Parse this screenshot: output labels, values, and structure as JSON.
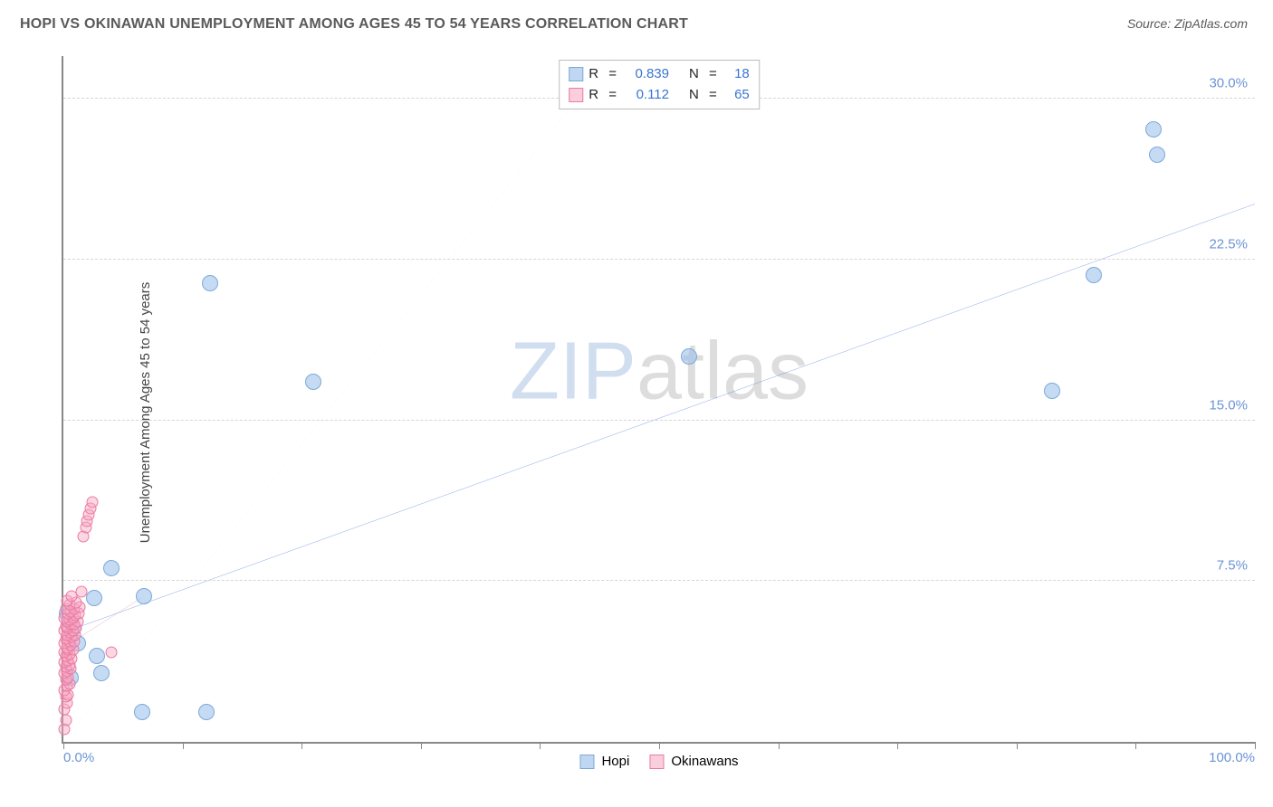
{
  "header": {
    "title": "HOPI VS OKINAWAN UNEMPLOYMENT AMONG AGES 45 TO 54 YEARS CORRELATION CHART",
    "source_label": "Source: ",
    "source_name": "ZipAtlas.com"
  },
  "chart": {
    "type": "scatter",
    "ylabel": "Unemployment Among Ages 45 to 54 years",
    "background_color": "#ffffff",
    "grid_color": "#d6d6d6",
    "axis_color": "#888888",
    "xlim": [
      0,
      100
    ],
    "ylim": [
      0,
      32
    ],
    "x_tick_positions": [
      0,
      10,
      20,
      30,
      40,
      50,
      60,
      70,
      80,
      90,
      100
    ],
    "x_axis_min_label": "0.0%",
    "x_axis_max_label": "100.0%",
    "y_ticks": [
      {
        "value": 7.5,
        "label": "7.5%"
      },
      {
        "value": 15.0,
        "label": "15.0%"
      },
      {
        "value": 22.5,
        "label": "22.5%"
      },
      {
        "value": 30.0,
        "label": "30.0%"
      }
    ],
    "tick_label_color": "#6b93d6",
    "tick_label_fontsize": 15,
    "watermark": {
      "part1": "ZIP",
      "part2": "atlas"
    },
    "series": [
      {
        "name": "Hopi",
        "color_fill": "rgba(149,189,234,0.55)",
        "color_stroke": "#7da8d9",
        "marker_size": 18,
        "class": "blue",
        "trend_line": {
          "x1": 0,
          "y1": 5.1,
          "x2": 100,
          "y2": 25.1,
          "color": "#2f6fd1",
          "width": 2.5,
          "dash": "none"
        },
        "guide_line": {
          "x1": 0,
          "y1": 0,
          "x2": 46,
          "y2": 32,
          "color": "#f4c9d6",
          "width": 1.2,
          "dash": "6,5"
        },
        "points": [
          {
            "x": 0.3,
            "y": 6.0
          },
          {
            "x": 0.8,
            "y": 5.3
          },
          {
            "x": 2.8,
            "y": 4.0
          },
          {
            "x": 2.6,
            "y": 6.7
          },
          {
            "x": 4.0,
            "y": 8.1
          },
          {
            "x": 3.2,
            "y": 3.2
          },
          {
            "x": 6.6,
            "y": 1.4
          },
          {
            "x": 6.8,
            "y": 6.8
          },
          {
            "x": 12.0,
            "y": 1.4
          },
          {
            "x": 12.3,
            "y": 21.4
          },
          {
            "x": 21.0,
            "y": 16.8
          },
          {
            "x": 52.5,
            "y": 18.0
          },
          {
            "x": 83.0,
            "y": 16.4
          },
          {
            "x": 86.5,
            "y": 21.8
          },
          {
            "x": 91.5,
            "y": 28.6
          },
          {
            "x": 91.8,
            "y": 27.4
          },
          {
            "x": 1.2,
            "y": 4.6
          },
          {
            "x": 0.6,
            "y": 3.0
          }
        ]
      },
      {
        "name": "Okinawans",
        "color_fill": "rgba(247,166,192,0.45)",
        "color_stroke": "#ec7aa3",
        "marker_size": 13,
        "class": "pink",
        "trend_line": {
          "x1": 0,
          "y1": 4.4,
          "x2": 6.5,
          "y2": 6.7,
          "color": "#e64f86",
          "width": 2,
          "dash": "none"
        },
        "points": [
          {
            "x": 0.1,
            "y": 0.6
          },
          {
            "x": 0.2,
            "y": 1.0
          },
          {
            "x": 0.1,
            "y": 1.5
          },
          {
            "x": 0.3,
            "y": 1.8
          },
          {
            "x": 0.2,
            "y": 2.1
          },
          {
            "x": 0.4,
            "y": 2.2
          },
          {
            "x": 0.1,
            "y": 2.4
          },
          {
            "x": 0.3,
            "y": 2.6
          },
          {
            "x": 0.5,
            "y": 2.7
          },
          {
            "x": 0.2,
            "y": 2.9
          },
          {
            "x": 0.4,
            "y": 3.0
          },
          {
            "x": 0.1,
            "y": 3.2
          },
          {
            "x": 0.3,
            "y": 3.3
          },
          {
            "x": 0.6,
            "y": 3.4
          },
          {
            "x": 0.2,
            "y": 3.5
          },
          {
            "x": 0.5,
            "y": 3.6
          },
          {
            "x": 0.1,
            "y": 3.7
          },
          {
            "x": 0.4,
            "y": 3.8
          },
          {
            "x": 0.7,
            "y": 3.9
          },
          {
            "x": 0.2,
            "y": 4.0
          },
          {
            "x": 0.5,
            "y": 4.1
          },
          {
            "x": 0.1,
            "y": 4.2
          },
          {
            "x": 0.4,
            "y": 4.3
          },
          {
            "x": 0.8,
            "y": 4.3
          },
          {
            "x": 0.3,
            "y": 4.4
          },
          {
            "x": 0.6,
            "y": 4.5
          },
          {
            "x": 0.1,
            "y": 4.6
          },
          {
            "x": 0.5,
            "y": 4.7
          },
          {
            "x": 0.9,
            "y": 4.7
          },
          {
            "x": 0.2,
            "y": 4.8
          },
          {
            "x": 0.7,
            "y": 4.9
          },
          {
            "x": 0.3,
            "y": 5.0
          },
          {
            "x": 1.0,
            "y": 5.0
          },
          {
            "x": 0.5,
            "y": 5.1
          },
          {
            "x": 0.1,
            "y": 5.2
          },
          {
            "x": 0.8,
            "y": 5.2
          },
          {
            "x": 0.4,
            "y": 5.3
          },
          {
            "x": 1.1,
            "y": 5.3
          },
          {
            "x": 0.2,
            "y": 5.4
          },
          {
            "x": 0.6,
            "y": 5.5
          },
          {
            "x": 0.9,
            "y": 5.5
          },
          {
            "x": 0.3,
            "y": 5.6
          },
          {
            "x": 1.2,
            "y": 5.6
          },
          {
            "x": 0.5,
            "y": 5.7
          },
          {
            "x": 0.1,
            "y": 5.8
          },
          {
            "x": 0.8,
            "y": 5.8
          },
          {
            "x": 1.0,
            "y": 5.9
          },
          {
            "x": 0.4,
            "y": 6.0
          },
          {
            "x": 1.3,
            "y": 6.0
          },
          {
            "x": 0.6,
            "y": 6.1
          },
          {
            "x": 0.2,
            "y": 6.2
          },
          {
            "x": 0.9,
            "y": 6.2
          },
          {
            "x": 1.4,
            "y": 6.3
          },
          {
            "x": 0.5,
            "y": 6.4
          },
          {
            "x": 1.1,
            "y": 6.5
          },
          {
            "x": 0.3,
            "y": 6.6
          },
          {
            "x": 0.7,
            "y": 6.8
          },
          {
            "x": 1.5,
            "y": 7.0
          },
          {
            "x": 1.7,
            "y": 9.6
          },
          {
            "x": 1.9,
            "y": 10.0
          },
          {
            "x": 2.0,
            "y": 10.3
          },
          {
            "x": 2.1,
            "y": 10.6
          },
          {
            "x": 2.3,
            "y": 10.9
          },
          {
            "x": 2.4,
            "y": 11.2
          },
          {
            "x": 4.0,
            "y": 4.2
          }
        ]
      }
    ],
    "legend_top": {
      "rows": [
        {
          "swatch": "blue",
          "r_label": "R",
          "r_value": "0.839",
          "n_label": "N",
          "n_value": "18"
        },
        {
          "swatch": "pink",
          "r_label": "R",
          "r_value": "0.112",
          "n_label": "N",
          "n_value": "65"
        }
      ]
    },
    "legend_bottom": {
      "items": [
        {
          "swatch": "blue",
          "label": "Hopi"
        },
        {
          "swatch": "pink",
          "label": "Okinawans"
        }
      ]
    }
  }
}
